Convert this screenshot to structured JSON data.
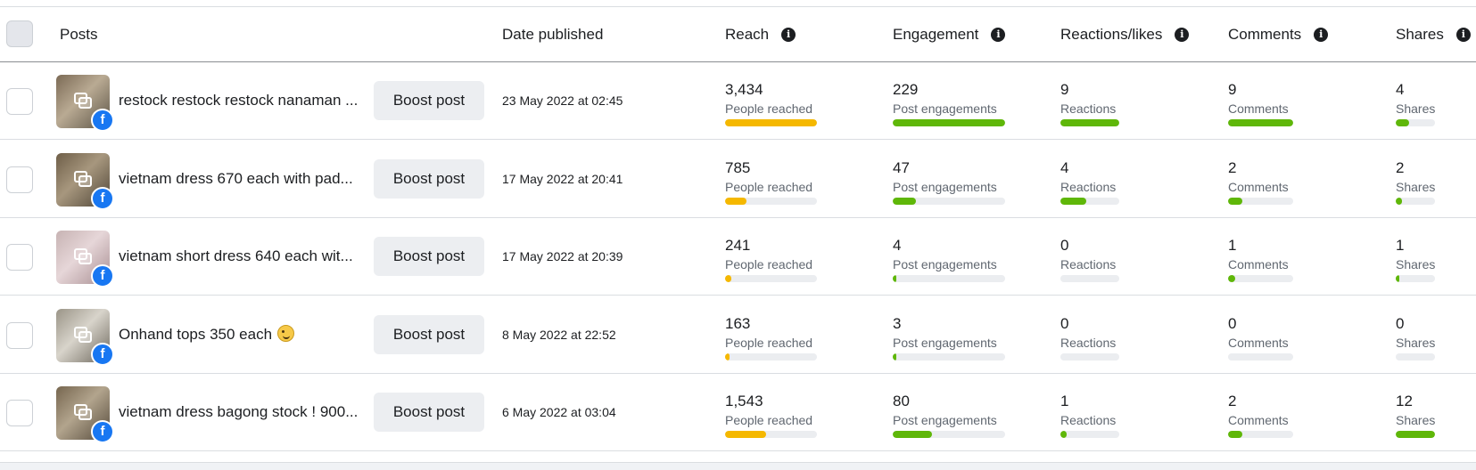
{
  "headers": {
    "posts": "Posts",
    "date": "Date published",
    "reach": "Reach",
    "engagement": "Engagement",
    "reactions": "Reactions/likes",
    "comments": "Comments",
    "shares": "Shares",
    "info_glyph": "i"
  },
  "colors": {
    "reach_bar": "#f5b800",
    "metric_bar": "#5fb709",
    "facebook": "#1877f2"
  },
  "boost_label": "Boost post",
  "rows": [
    {
      "text": "restock restock restock nanaman ...",
      "thumb_colors": [
        "#7b6a55",
        "#b9aa93",
        "#5c5446"
      ],
      "date": "23 May 2022 at 02:45",
      "reach": {
        "value": "3,434",
        "label": "People reached",
        "fill": 1.0
      },
      "engagement": {
        "value": "229",
        "label": "Post engagements",
        "fill": 1.0
      },
      "reactions": {
        "value": "9",
        "label": "Reactions",
        "fill": 1.0
      },
      "comments": {
        "value": "9",
        "label": "Comments",
        "fill": 1.0
      },
      "shares": {
        "value": "4",
        "label": "Shares",
        "fill": 0.33
      }
    },
    {
      "text": "vietnam dress 670 each with pad...",
      "thumb_colors": [
        "#6e5e48",
        "#a7977e",
        "#4e4436"
      ],
      "date": "17 May 2022 at 20:41",
      "reach": {
        "value": "785",
        "label": "People reached",
        "fill": 0.23
      },
      "engagement": {
        "value": "47",
        "label": "Post engagements",
        "fill": 0.21
      },
      "reactions": {
        "value": "4",
        "label": "Reactions",
        "fill": 0.44
      },
      "comments": {
        "value": "2",
        "label": "Comments",
        "fill": 0.22
      },
      "shares": {
        "value": "2",
        "label": "Shares",
        "fill": 0.17
      }
    },
    {
      "text": "vietnam short dress 640 each wit...",
      "thumb_colors": [
        "#c7b3b3",
        "#e6d6d8",
        "#a88e92"
      ],
      "date": "17 May 2022 at 20:39",
      "reach": {
        "value": "241",
        "label": "People reached",
        "fill": 0.07
      },
      "engagement": {
        "value": "4",
        "label": "Post engagements",
        "fill": 0.02
      },
      "reactions": {
        "value": "0",
        "label": "Reactions",
        "fill": 0.0
      },
      "comments": {
        "value": "1",
        "label": "Comments",
        "fill": 0.11
      },
      "shares": {
        "value": "1",
        "label": "Shares",
        "fill": 0.08
      }
    },
    {
      "text": "Onhand tops 350 each",
      "emoji": "winking-face-emoji",
      "thumb_colors": [
        "#9a9487",
        "#d8d4cb",
        "#6d675c"
      ],
      "date": "8 May 2022 at 22:52",
      "reach": {
        "value": "163",
        "label": "People reached",
        "fill": 0.05
      },
      "engagement": {
        "value": "3",
        "label": "Post engagements",
        "fill": 0.013
      },
      "reactions": {
        "value": "0",
        "label": "Reactions",
        "fill": 0.0
      },
      "comments": {
        "value": "0",
        "label": "Comments",
        "fill": 0.0
      },
      "shares": {
        "value": "0",
        "label": "Shares",
        "fill": 0.0
      }
    },
    {
      "text": "vietnam dress bagong stock ! 900...",
      "thumb_colors": [
        "#76664f",
        "#b2a48d",
        "#554a3b"
      ],
      "date": "6 May 2022 at 03:04",
      "reach": {
        "value": "1,543",
        "label": "People reached",
        "fill": 0.45
      },
      "engagement": {
        "value": "80",
        "label": "Post engagements",
        "fill": 0.35
      },
      "reactions": {
        "value": "1",
        "label": "Reactions",
        "fill": 0.11
      },
      "comments": {
        "value": "2",
        "label": "Comments",
        "fill": 0.22
      },
      "shares": {
        "value": "12",
        "label": "Shares",
        "fill": 1.0
      }
    }
  ]
}
